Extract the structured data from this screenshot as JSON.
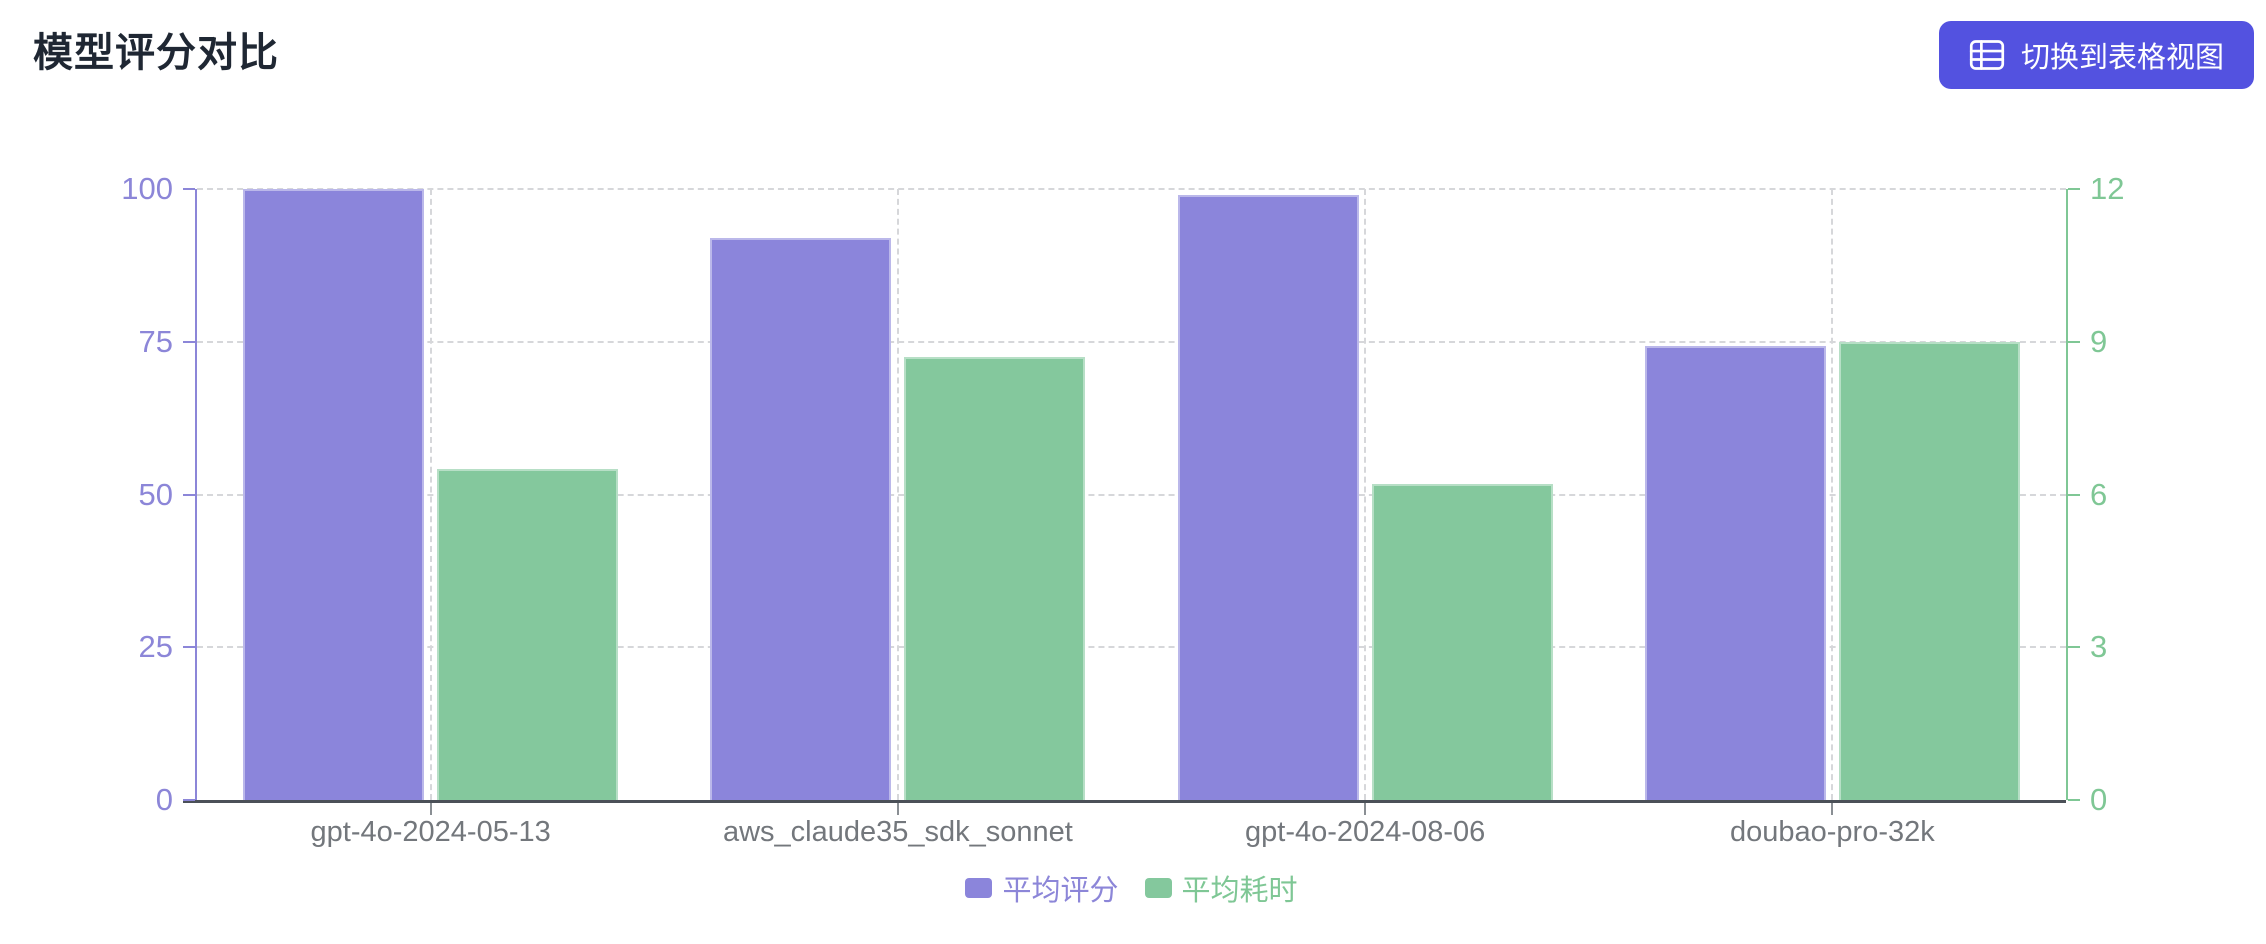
{
  "page": {
    "title": "模型评分对比",
    "background": "#ffffff"
  },
  "toolbar": {
    "toggle_view_label": "切换到表格视图",
    "toggle_view_icon": "table-icon",
    "button_color": "#5352E0",
    "button_text_color": "#ffffff"
  },
  "chart_data": {
    "type": "bar",
    "title": "模型评分对比",
    "categories": [
      "gpt-4o-2024-05-13",
      "aws_claude35_sdk_sonnet",
      "gpt-4o-2024-08-06",
      "doubao-pro-32k"
    ],
    "series": [
      {
        "name": "平均评分",
        "axis": "left",
        "color": "#8B85DB",
        "values": [
          100,
          92,
          99,
          74.3
        ]
      },
      {
        "name": "平均耗时",
        "axis": "right",
        "color": "#84C89D",
        "values": [
          6.5,
          8.7,
          6.2,
          9.0
        ]
      }
    ],
    "axes": {
      "left": {
        "min": 0,
        "max": 100,
        "ticks": [
          0,
          25,
          50,
          75,
          100
        ],
        "color": "#8C86D8"
      },
      "right": {
        "min": 0,
        "max": 12,
        "ticks": [
          0,
          3,
          6,
          9,
          12
        ],
        "color": "#7FC795"
      }
    },
    "legend": {
      "position": "bottom",
      "items": [
        "平均评分",
        "平均耗时"
      ]
    },
    "grid": {
      "horizontal_dashed": true,
      "vertical_dashed_at_category_centers": true
    },
    "x_label_color": "#73777C"
  }
}
